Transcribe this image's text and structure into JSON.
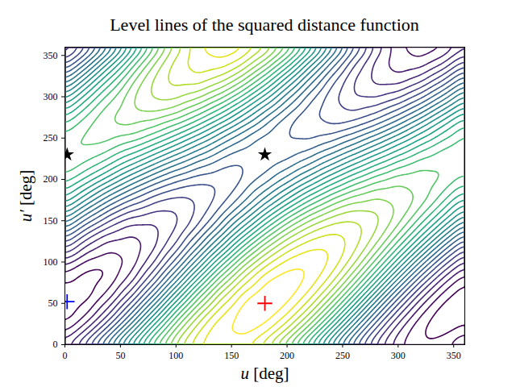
{
  "chart_data": {
    "type": "contour",
    "title": "Level lines of the squared distance function",
    "x_label": "u [deg]",
    "y_label": "u′ [deg]",
    "xlim": [
      0,
      360
    ],
    "ylim": [
      0,
      360
    ],
    "xticks": [
      0,
      50,
      100,
      150,
      200,
      250,
      300,
      350
    ],
    "yticks": [
      0,
      50,
      100,
      150,
      200,
      250,
      300,
      350
    ],
    "grid": false,
    "color": "viridis",
    "x": [
      0,
      20,
      40,
      60,
      80,
      100,
      120,
      140,
      160,
      180,
      200,
      220,
      240,
      260,
      280,
      300,
      320,
      340,
      360
    ],
    "y": [
      0,
      20,
      40,
      60,
      80,
      100,
      120,
      140,
      160,
      180,
      200,
      220,
      240,
      260,
      280,
      300,
      320,
      340,
      360
    ],
    "z": [
      [
        0.46,
        0.78,
        1.19,
        1.64,
        2.07,
        2.44,
        2.69,
        2.79,
        2.74,
        2.54,
        2.22,
        1.81,
        1.36,
        0.93,
        0.57,
        0.32,
        0.21,
        0.26,
        0.46
      ],
      [
        0.23,
        0.48,
        0.85,
        1.3,
        1.77,
        2.21,
        2.57,
        2.79,
        2.86,
        2.77,
        2.52,
        2.15,
        1.7,
        1.23,
        0.79,
        0.43,
        0.21,
        0.14,
        0.23
      ],
      [
        0.12,
        0.26,
        0.55,
        0.96,
        1.43,
        1.91,
        2.34,
        2.67,
        2.86,
        2.89,
        2.74,
        2.45,
        2.04,
        1.57,
        1.09,
        0.66,
        0.33,
        0.14,
        0.12
      ],
      [
        0.12,
        0.14,
        0.33,
        0.66,
        1.09,
        1.57,
        2.04,
        2.45,
        2.74,
        2.89,
        2.86,
        2.67,
        2.34,
        1.91,
        1.43,
        0.96,
        0.55,
        0.26,
        0.12
      ],
      [
        0.23,
        0.14,
        0.21,
        0.43,
        0.79,
        1.23,
        1.7,
        2.15,
        2.52,
        2.77,
        2.86,
        2.79,
        2.57,
        2.21,
        1.77,
        1.3,
        0.85,
        0.48,
        0.23
      ],
      [
        0.46,
        0.26,
        0.21,
        0.32,
        0.57,
        0.93,
        1.36,
        1.81,
        2.22,
        2.54,
        2.74,
        2.79,
        2.69,
        2.44,
        2.07,
        1.64,
        1.19,
        0.78,
        0.46
      ],
      [
        0.76,
        0.48,
        0.33,
        0.32,
        0.45,
        0.7,
        1.06,
        1.46,
        1.88,
        2.24,
        2.52,
        2.67,
        2.69,
        2.55,
        2.3,
        1.94,
        1.54,
        1.12,
        0.76
      ],
      [
        1.1,
        0.78,
        0.55,
        0.43,
        0.45,
        0.58,
        0.83,
        1.16,
        1.53,
        1.9,
        2.22,
        2.45,
        2.57,
        2.55,
        2.42,
        2.17,
        1.84,
        1.47,
        1.1
      ],
      [
        1.44,
        1.12,
        0.85,
        0.66,
        0.57,
        0.58,
        0.72,
        0.94,
        1.23,
        1.56,
        1.88,
        2.15,
        2.34,
        2.44,
        2.42,
        2.29,
        2.06,
        1.77,
        1.44
      ],
      [
        1.74,
        1.47,
        1.19,
        0.96,
        0.79,
        0.7,
        0.72,
        0.82,
        1.01,
        1.26,
        1.53,
        1.81,
        2.04,
        2.21,
        2.3,
        2.29,
        2.18,
        1.99,
        1.74
      ],
      [
        1.97,
        1.77,
        1.54,
        1.3,
        1.09,
        0.93,
        0.83,
        0.82,
        0.89,
        1.03,
        1.23,
        1.46,
        1.7,
        1.91,
        2.07,
        2.17,
        2.18,
        2.11,
        1.97
      ],
      [
        2.09,
        1.99,
        1.84,
        1.64,
        1.43,
        1.23,
        1.06,
        0.94,
        0.89,
        0.92,
        1.01,
        1.16,
        1.36,
        1.57,
        1.77,
        1.94,
        2.06,
        2.11,
        2.09
      ],
      [
        2.09,
        2.11,
        2.06,
        1.94,
        1.77,
        1.57,
        1.36,
        1.16,
        1.01,
        0.92,
        0.89,
        0.94,
        1.06,
        1.23,
        1.43,
        1.64,
        1.84,
        1.99,
        2.09
      ],
      [
        1.97,
        2.11,
        2.18,
        2.17,
        2.07,
        1.91,
        1.7,
        1.46,
        1.23,
        1.03,
        0.89,
        0.82,
        0.83,
        0.93,
        1.09,
        1.3,
        1.54,
        1.77,
        1.97
      ],
      [
        1.74,
        1.99,
        2.18,
        2.29,
        2.3,
        2.21,
        2.04,
        1.81,
        1.53,
        1.26,
        1.01,
        0.82,
        0.72,
        0.7,
        0.79,
        0.96,
        1.19,
        1.47,
        1.74
      ],
      [
        1.44,
        1.77,
        2.06,
        2.29,
        2.42,
        2.44,
        2.34,
        2.15,
        1.88,
        1.56,
        1.23,
        0.94,
        0.72,
        0.58,
        0.57,
        0.66,
        0.85,
        1.12,
        1.44
      ],
      [
        1.1,
        1.47,
        1.84,
        2.17,
        2.42,
        2.55,
        2.57,
        2.45,
        2.22,
        1.9,
        1.53,
        1.16,
        0.83,
        0.58,
        0.45,
        0.43,
        0.55,
        0.78,
        1.1
      ],
      [
        0.76,
        1.12,
        1.54,
        1.94,
        2.3,
        2.55,
        2.69,
        2.67,
        2.52,
        2.24,
        1.88,
        1.46,
        1.06,
        0.7,
        0.45,
        0.32,
        0.33,
        0.48,
        0.76
      ],
      [
        0.46,
        0.78,
        1.19,
        1.64,
        2.07,
        2.44,
        2.69,
        2.79,
        2.74,
        2.54,
        2.22,
        1.81,
        1.36,
        0.93,
        0.57,
        0.32,
        0.21,
        0.26,
        0.46
      ]
    ],
    "levels": [
      0.2,
      0.3,
      0.4,
      0.5,
      0.6,
      0.7,
      0.8,
      0.9,
      1.0,
      1.1,
      1.2,
      1.3,
      1.4,
      1.5,
      1.6,
      1.7,
      1.8,
      1.9,
      2.0,
      2.1,
      2.2,
      2.3,
      2.4,
      2.5,
      2.6,
      2.7,
      2.8
    ],
    "series": [
      {
        "type": "scatter",
        "marker": "plus",
        "color": "red",
        "x": [
          180
        ],
        "y": [
          50
        ]
      },
      {
        "type": "scatter",
        "marker": "plus",
        "color": "blue",
        "x": [
          2
        ],
        "y": [
          52
        ]
      },
      {
        "type": "scatter",
        "marker": "star",
        "color": "black",
        "x": [
          2,
          180
        ],
        "y": [
          230,
          230
        ]
      }
    ]
  }
}
